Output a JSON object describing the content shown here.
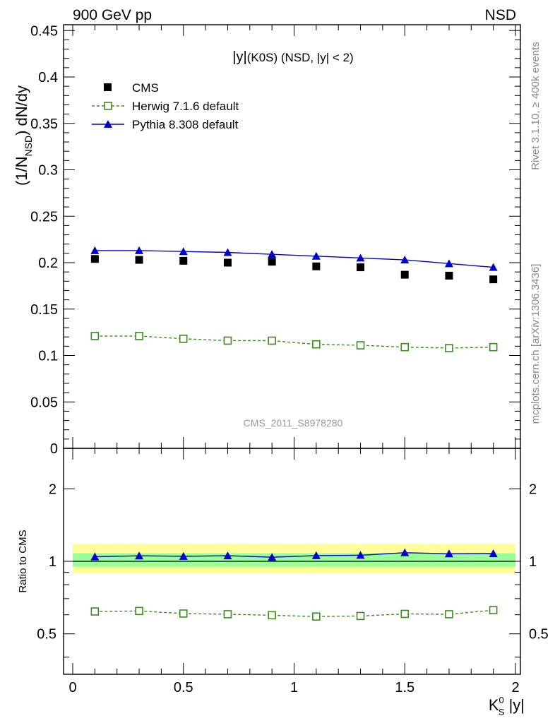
{
  "header": {
    "left": "900 GeV pp",
    "right": "NSD"
  },
  "side_labels": {
    "rivet": "Rivet 3.1.10, ≥ 400k events",
    "mcplots": "mcplots.cern.ch [arXiv:1306.3436]"
  },
  "chart_data": [
    {
      "type": "scatter",
      "panel": "main",
      "title_pre": "|y|",
      "title_mid": "(K0S)",
      "title_post": " (NSD, |y| < 2)",
      "ylabel_pre": "(1/N",
      "ylabel_sub": "NSD",
      "ylabel_post": ") dN/dy",
      "watermark": "CMS_2011_S8978280",
      "xlim": [
        -0.1,
        2.05
      ],
      "ylim": [
        0,
        0.46
      ],
      "y_ticks": [
        "0",
        "0.05",
        "0.1",
        "0.15",
        "0.2",
        "0.25",
        "0.3",
        "0.35",
        "0.4",
        "0.45"
      ],
      "legend_position": "top-left",
      "x": [
        0.1,
        0.3,
        0.5,
        0.7,
        0.9,
        1.1,
        1.3,
        1.5,
        1.7,
        1.9
      ],
      "series": [
        {
          "name": "CMS",
          "color": "#000000",
          "marker": "filled-square",
          "line": "none",
          "values": [
            0.204,
            0.203,
            0.202,
            0.2,
            0.201,
            0.196,
            0.195,
            0.187,
            0.186,
            0.182
          ]
        },
        {
          "name": "Herwig 7.1.6 default",
          "color": "#3c8c1e",
          "marker": "open-square",
          "line": "dashed",
          "values": [
            0.121,
            0.121,
            0.118,
            0.116,
            0.116,
            0.112,
            0.111,
            0.109,
            0.108,
            0.109
          ]
        },
        {
          "name": "Pythia 8.308 default",
          "color": "#0000cc",
          "marker": "filled-triangle",
          "line": "solid",
          "values": [
            0.213,
            0.213,
            0.212,
            0.211,
            0.209,
            0.207,
            0.205,
            0.203,
            0.199,
            0.195
          ]
        }
      ]
    },
    {
      "type": "line",
      "panel": "ratio",
      "ylabel": "Ratio to CMS",
      "xlabel_pre": "K",
      "xlabel_sup": "0",
      "xlabel_sub": "S",
      "xlabel_post": " |y|",
      "xlim": [
        -0.1,
        2.05
      ],
      "ylim": [
        0.35,
        2.3
      ],
      "x_ticks": [
        "0",
        "0.5",
        "1",
        "1.5",
        "2"
      ],
      "y_ticks": [
        "0.5",
        "1",
        "2"
      ],
      "bands": [
        {
          "color": "#ffff99",
          "range": [
            0.89,
            1.18
          ]
        },
        {
          "color": "#99ff99",
          "range": [
            0.95,
            1.08
          ]
        }
      ],
      "x": [
        0.1,
        0.3,
        0.5,
        0.7,
        0.9,
        1.1,
        1.3,
        1.5,
        1.7,
        1.9
      ],
      "series": [
        {
          "name": "Herwig 7.1.6 default",
          "color": "#3c8c1e",
          "marker": "open-square",
          "line": "dashed",
          "values": [
            0.619,
            0.622,
            0.607,
            0.603,
            0.597,
            0.59,
            0.593,
            0.605,
            0.603,
            0.627
          ]
        },
        {
          "name": "Pythia 8.308 default",
          "color": "#0000cc",
          "marker": "filled-triangle",
          "line": "solid",
          "values": [
            1.044,
            1.054,
            1.049,
            1.055,
            1.04,
            1.056,
            1.06,
            1.086,
            1.075,
            1.077
          ]
        }
      ]
    }
  ]
}
